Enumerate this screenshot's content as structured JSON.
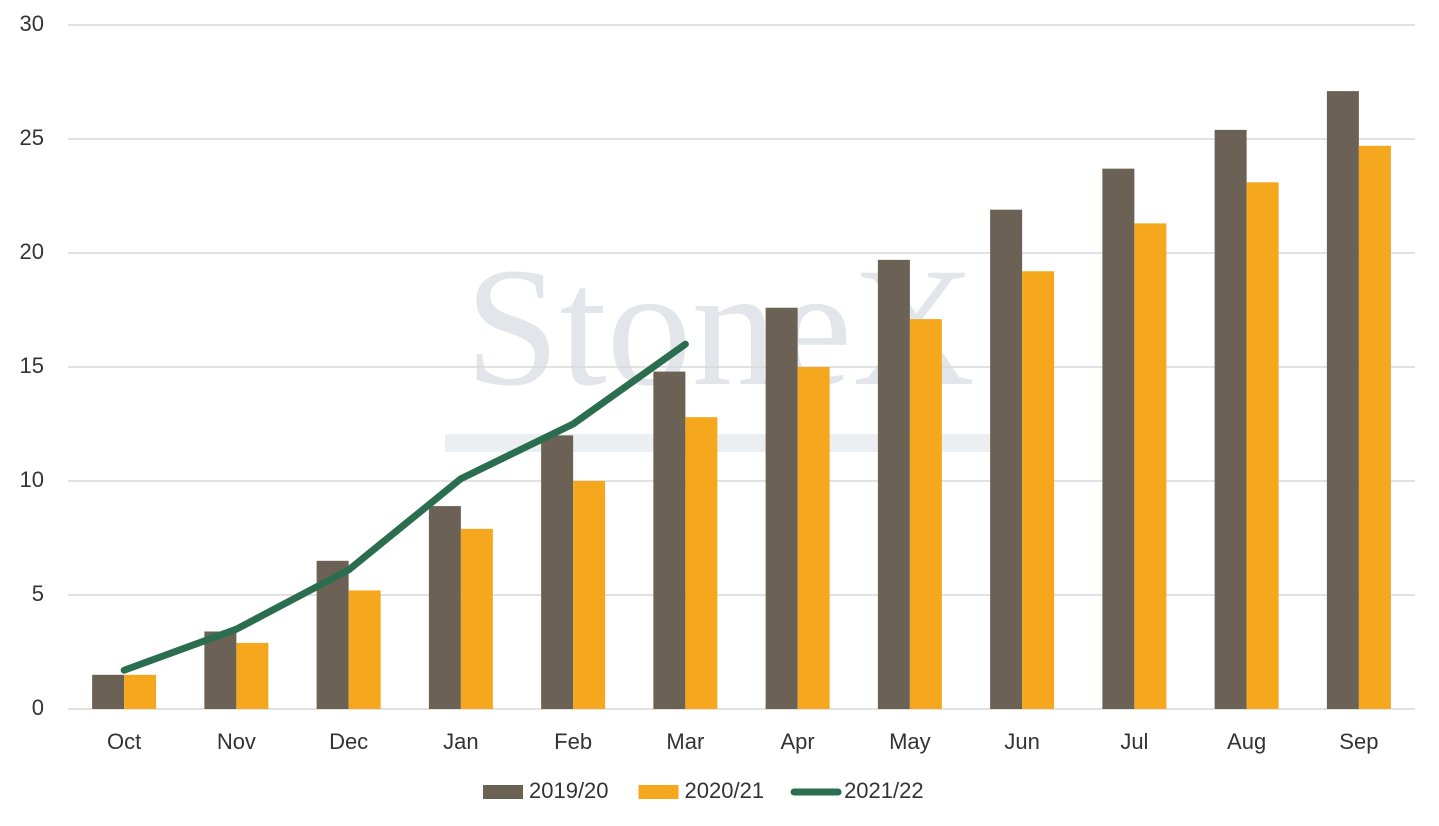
{
  "chart_data": {
    "type": "bar_line",
    "watermark": "StoneX",
    "categories": [
      "Oct",
      "Nov",
      "Dec",
      "Jan",
      "Feb",
      "Mar",
      "Apr",
      "May",
      "Jun",
      "Jul",
      "Aug",
      "Sep"
    ],
    "series": [
      {
        "name": "2019/20",
        "type": "bar",
        "color": "#6b6255",
        "values": [
          1.5,
          3.4,
          6.5,
          8.9,
          12.0,
          14.8,
          17.6,
          19.7,
          21.9,
          23.7,
          25.4,
          27.1
        ]
      },
      {
        "name": "2020/21",
        "type": "bar",
        "color": "#f5a81e",
        "values": [
          1.5,
          2.9,
          5.2,
          7.9,
          10.0,
          12.8,
          15.0,
          17.1,
          19.2,
          21.3,
          23.1,
          24.7
        ]
      },
      {
        "name": "2021/22",
        "type": "line",
        "color": "#2b6e4f",
        "values": [
          1.7,
          3.5,
          6.1,
          10.1,
          12.5,
          16.0,
          null,
          null,
          null,
          null,
          null,
          null
        ]
      }
    ],
    "ylim": [
      0,
      30
    ],
    "yticks": [
      0,
      5,
      10,
      15,
      20,
      25,
      30
    ],
    "grid": true,
    "legend": "bottom"
  }
}
